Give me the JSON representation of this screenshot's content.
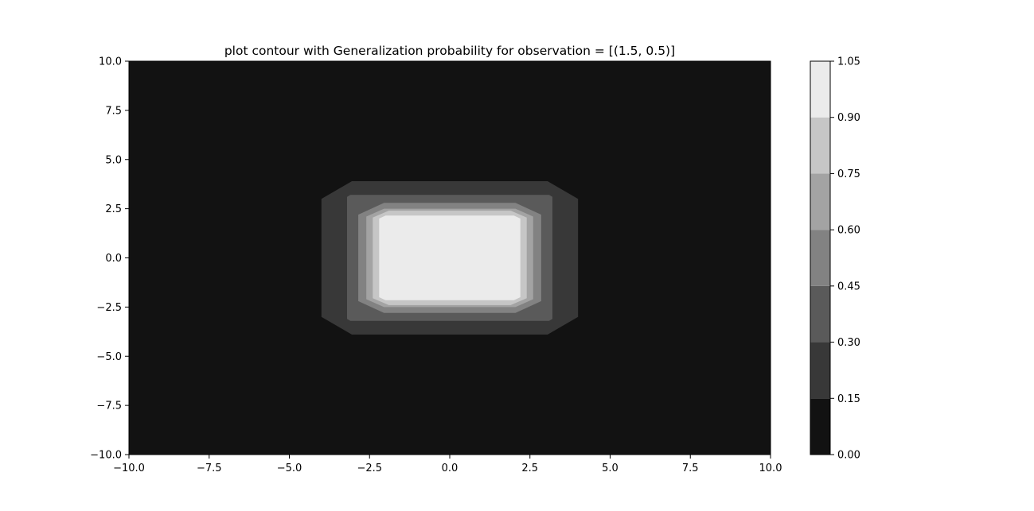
{
  "chart_data": {
    "type": "contour",
    "title": "plot contour with Generalization probability for observation = [(1.5, 0.5)]",
    "xlim": [
      -10.0,
      10.0
    ],
    "ylim": [
      -10.0,
      10.0
    ],
    "x_ticks": [
      "−10.0",
      "−7.5",
      "−5.0",
      "−2.5",
      "0.0",
      "2.5",
      "5.0",
      "7.5",
      "10.0"
    ],
    "y_ticks": [
      "−10.0",
      "−7.5",
      "−5.0",
      "−2.5",
      "0.0",
      "2.5",
      "5.0",
      "7.5",
      "10.0"
    ],
    "x_tick_values": [
      -10,
      -7.5,
      -5,
      -2.5,
      0,
      2.5,
      5,
      7.5,
      10
    ],
    "y_tick_values": [
      -10,
      -7.5,
      -5,
      -2.5,
      0,
      2.5,
      5,
      7.5,
      10
    ],
    "levels": [
      0.0,
      0.15,
      0.3,
      0.45,
      0.6,
      0.75,
      0.9,
      1.05
    ],
    "level_labels": [
      "0.00",
      "0.15",
      "0.30",
      "0.45",
      "0.60",
      "0.75",
      "0.90",
      "1.05"
    ],
    "level_colors": [
      "#121212",
      "#383838",
      "#5a5a5a",
      "#828282",
      "#a3a3a3",
      "#c6c6c6",
      "#ebebeb"
    ],
    "contour_regions": [
      {
        "level_index": 1,
        "x_range": [
          -4.0,
          4.0
        ],
        "y_range": [
          -3.9,
          3.9
        ],
        "corner": [
          0.95,
          0.9
        ]
      },
      {
        "level_index": 2,
        "x_range": [
          -3.2,
          3.2
        ],
        "y_range": [
          -3.2,
          3.2
        ],
        "corner": [
          0.1,
          0.1
        ]
      },
      {
        "level_index": 3,
        "x_range": [
          -2.85,
          2.85
        ],
        "y_range": [
          -2.8,
          2.8
        ],
        "corner": [
          0.8,
          0.6
        ]
      },
      {
        "level_index": 4,
        "x_range": [
          -2.6,
          2.6
        ],
        "y_range": [
          -2.5,
          2.5
        ],
        "corner": [
          0.55,
          0.4
        ]
      },
      {
        "level_index": 5,
        "x_range": [
          -2.4,
          2.4
        ],
        "y_range": [
          -2.4,
          2.4
        ],
        "corner": [
          0.5,
          0.35
        ]
      },
      {
        "level_index": 6,
        "x_range": [
          -2.2,
          2.2
        ],
        "y_range": [
          -2.15,
          2.15
        ],
        "corner": [
          0.2,
          0.15
        ]
      }
    ],
    "legend": "colorbar-right",
    "grid": false
  }
}
